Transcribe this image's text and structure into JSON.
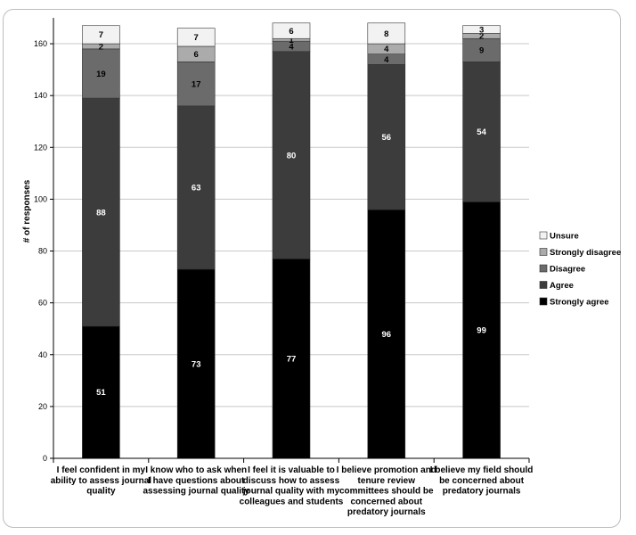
{
  "chart_data": {
    "type": "bar",
    "stacked": true,
    "title": "",
    "xlabel": "",
    "ylabel": "# of responses",
    "ylim": [
      0,
      170
    ],
    "yticks": [
      0,
      20,
      40,
      60,
      80,
      100,
      120,
      140,
      160
    ],
    "grid": true,
    "legend_position": "right",
    "categories": [
      [
        "I feel confident in my",
        "ability to assess journal",
        "quality"
      ],
      [
        "I know who to ask when",
        "I have questions about",
        "assessing journal quality"
      ],
      [
        "I feel it is valuable to",
        "discuss how to assess",
        "journal quality with my",
        "colleagues and students"
      ],
      [
        "I believe promotion and",
        "tenure review",
        "committees should be",
        "concerned about",
        "predatory journals"
      ],
      [
        "I believe my field should",
        "be concerned about",
        "predatory journals"
      ]
    ],
    "series": [
      {
        "name": "Strongly agree",
        "color": "#000000",
        "label_color": "#ffffff",
        "values": [
          51,
          73,
          77,
          96,
          99
        ]
      },
      {
        "name": "Agree",
        "color": "#3c3c3c",
        "label_color": "#ffffff",
        "values": [
          88,
          63,
          80,
          56,
          54
        ]
      },
      {
        "name": "Disagree",
        "color": "#6b6b6b",
        "label_color": "#000000",
        "values": [
          19,
          17,
          4,
          4,
          9
        ]
      },
      {
        "name": "Strongly disagree",
        "color": "#ababab",
        "label_color": "#000000",
        "values": [
          2,
          6,
          1,
          4,
          2
        ]
      },
      {
        "name": "Unsure",
        "color": "#f2f2f2",
        "label_color": "#000000",
        "values": [
          7,
          7,
          6,
          8,
          3
        ]
      }
    ],
    "legend_order": [
      "Unsure",
      "Strongly disagree",
      "Disagree",
      "Agree",
      "Strongly agree"
    ]
  }
}
